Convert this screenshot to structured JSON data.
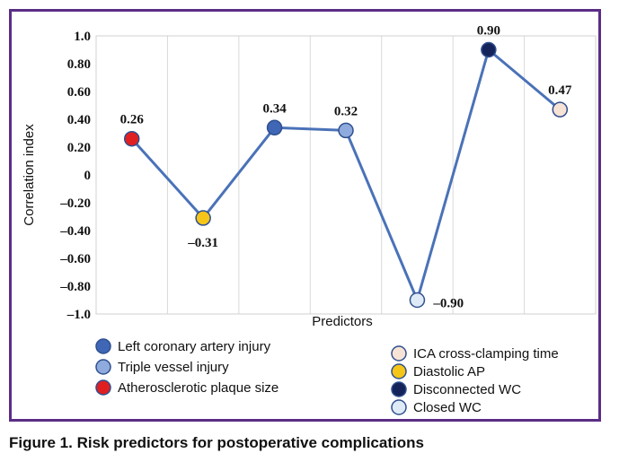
{
  "chart_data": {
    "type": "line",
    "ylabel": "Correlation index",
    "xlabel": "Predictors",
    "ylim": [
      -1.0,
      1.0
    ],
    "yticks": [
      {
        "value": 1.0,
        "label": "1.0"
      },
      {
        "value": 0.8,
        "label": "0.80"
      },
      {
        "value": 0.6,
        "label": "0.60"
      },
      {
        "value": 0.4,
        "label": "0.40"
      },
      {
        "value": 0.2,
        "label": "0.20"
      },
      {
        "value": 0.0,
        "label": "0"
      },
      {
        "value": -0.2,
        "label": "–0.20"
      },
      {
        "value": -0.4,
        "label": "–0.40"
      },
      {
        "value": -0.6,
        "label": "–0.60"
      },
      {
        "value": -0.8,
        "label": "–0.80"
      },
      {
        "value": -1.0,
        "label": "–1.0"
      }
    ],
    "grid": "vertical",
    "line_color": "#4a72b8",
    "points": [
      {
        "predictor": "Atherosclerotic plaque size",
        "value": 0.26,
        "label": "0.26",
        "color": "#e02020"
      },
      {
        "predictor": "Diastolic AP",
        "value": -0.31,
        "label": "–0.31",
        "color": "#f5c518"
      },
      {
        "predictor": "Left coronary artery injury",
        "value": 0.34,
        "label": "0.34",
        "color": "#3f67b5"
      },
      {
        "predictor": "Triple vessel injury",
        "value": 0.32,
        "label": "0.32",
        "color": "#8faadc"
      },
      {
        "predictor": "Closed WC",
        "value": -0.9,
        "label": "–0.90",
        "color": "#dfeaf7"
      },
      {
        "predictor": "Disconnected WC",
        "value": 0.9,
        "label": "0.90",
        "color": "#14235a"
      },
      {
        "predictor": "ICA cross-clamping time",
        "value": 0.47,
        "label": "0.47",
        "color": "#f7e3d6"
      }
    ],
    "legend": [
      {
        "label": "Left coronary artery injury",
        "color": "#3f67b5"
      },
      {
        "label": "Triple vessel injury",
        "color": "#8faadc"
      },
      {
        "label": "Atherosclerotic plaque size",
        "color": "#e02020"
      },
      {
        "label": "ICA cross-clamping time",
        "color": "#f7e3d6"
      },
      {
        "label": "Diastolic AP",
        "color": "#f5c518"
      },
      {
        "label": "Disconnected WC",
        "color": "#14235a"
      },
      {
        "label": "Closed WC",
        "color": "#dfeaf7"
      }
    ]
  },
  "caption": "Figure 1. Risk predictors for postoperative complications"
}
